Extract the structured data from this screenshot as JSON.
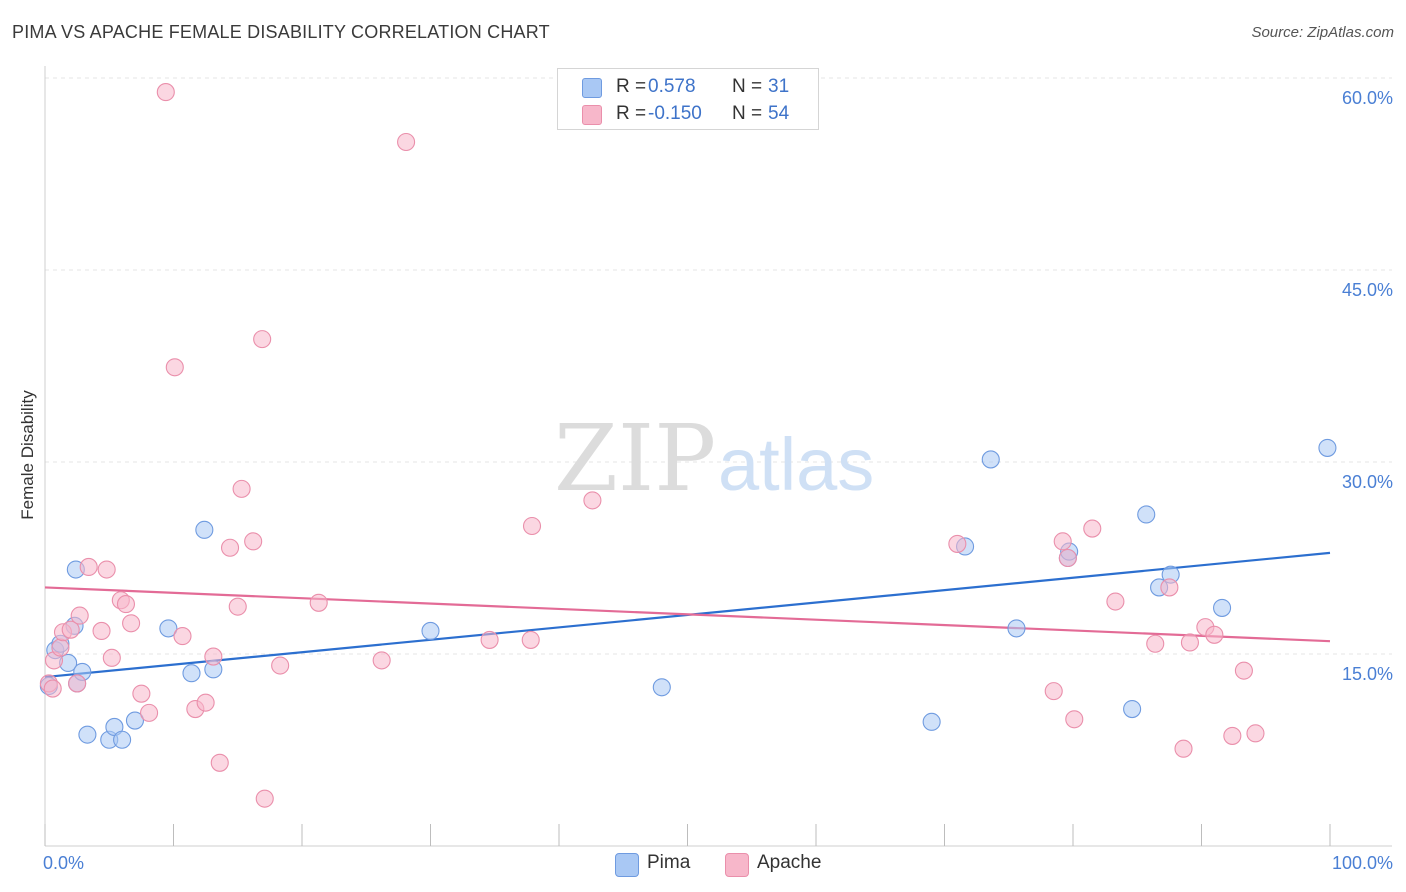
{
  "header": {
    "title": "PIMA VS APACHE FEMALE DISABILITY CORRELATION CHART",
    "source": "Source: ZipAtlas.com"
  },
  "watermark": {
    "zip": "ZIP",
    "atlas": "atlas"
  },
  "legend": {
    "rows": [
      {
        "r_label": "R =",
        "r_value": "0.578",
        "n_label": "N =",
        "n_value": "31",
        "color": "#a9c8f4"
      },
      {
        "r_label": "R =",
        "r_value": "-0.150",
        "n_label": "N =",
        "n_value": "54",
        "color": "#f7b7ca"
      }
    ]
  },
  "bottom_legend": {
    "items": [
      {
        "label": "Pima",
        "color": "#a9c8f4"
      },
      {
        "label": "Apache",
        "color": "#f7b7ca"
      }
    ]
  },
  "chart_data": {
    "type": "scatter",
    "title": "PIMA VS APACHE FEMALE DISABILITY CORRELATION CHART",
    "xlabel": "",
    "ylabel": "Female Disability",
    "xlim": [
      0,
      100
    ],
    "ylim": [
      0,
      60
    ],
    "x_tick_labels": [
      "0.0%",
      "100.0%"
    ],
    "y_ticks": [
      15,
      30,
      45,
      60
    ],
    "y_tick_labels": [
      "15.0%",
      "30.0%",
      "45.0%",
      "60.0%"
    ],
    "grid": true,
    "legend_position": "top-center",
    "series": [
      {
        "name": "Pima",
        "color": "#a9c8f4",
        "stroke": "#6f9be0",
        "trend_color": "#2c6fcf",
        "trend": {
          "x": [
            0,
            100
          ],
          "y": [
            13.2,
            22.9
          ]
        },
        "points": [
          [
            0.3,
            12.5
          ],
          [
            0.8,
            15.3
          ],
          [
            1.2,
            15.8
          ],
          [
            1.8,
            14.3
          ],
          [
            2.3,
            17.2
          ],
          [
            2.4,
            21.6
          ],
          [
            2.5,
            12.7
          ],
          [
            2.9,
            13.6
          ],
          [
            3.3,
            8.7
          ],
          [
            5.0,
            8.3
          ],
          [
            5.4,
            9.3
          ],
          [
            6.0,
            8.3
          ],
          [
            7.0,
            9.8
          ],
          [
            9.6,
            17.0
          ],
          [
            11.4,
            13.5
          ],
          [
            12.4,
            24.7
          ],
          [
            13.1,
            13.8
          ],
          [
            30.0,
            16.8
          ],
          [
            48.0,
            12.4
          ],
          [
            69.0,
            9.7
          ],
          [
            71.6,
            23.4
          ],
          [
            73.6,
            30.2
          ],
          [
            75.6,
            17.0
          ],
          [
            79.6,
            22.5
          ],
          [
            79.7,
            23.0
          ],
          [
            84.6,
            10.7
          ],
          [
            85.7,
            25.9
          ],
          [
            86.7,
            20.2
          ],
          [
            87.6,
            21.2
          ],
          [
            91.6,
            18.6
          ],
          [
            99.8,
            31.1
          ]
        ]
      },
      {
        "name": "Apache",
        "color": "#f7b7ca",
        "stroke": "#ea8fab",
        "trend_color": "#e36b96",
        "trend": {
          "x": [
            0,
            100
          ],
          "y": [
            20.2,
            16.0
          ]
        },
        "points": [
          [
            0.3,
            12.7
          ],
          [
            0.6,
            12.3
          ],
          [
            0.7,
            14.5
          ],
          [
            1.2,
            15.5
          ],
          [
            1.4,
            16.7
          ],
          [
            2.0,
            16.9
          ],
          [
            2.5,
            12.7
          ],
          [
            2.7,
            18.0
          ],
          [
            3.4,
            21.8
          ],
          [
            4.4,
            16.8
          ],
          [
            4.8,
            21.6
          ],
          [
            5.2,
            14.7
          ],
          [
            5.9,
            19.2
          ],
          [
            6.3,
            18.9
          ],
          [
            6.7,
            17.4
          ],
          [
            7.5,
            11.9
          ],
          [
            8.1,
            10.4
          ],
          [
            9.4,
            58.9
          ],
          [
            10.1,
            37.4
          ],
          [
            10.7,
            16.4
          ],
          [
            11.7,
            10.7
          ],
          [
            12.5,
            11.2
          ],
          [
            13.1,
            14.8
          ],
          [
            13.6,
            6.5
          ],
          [
            14.4,
            23.3
          ],
          [
            15.0,
            18.7
          ],
          [
            15.3,
            27.9
          ],
          [
            16.2,
            23.8
          ],
          [
            16.9,
            39.6
          ],
          [
            17.1,
            3.7
          ],
          [
            18.3,
            14.1
          ],
          [
            21.3,
            19.0
          ],
          [
            26.2,
            14.5
          ],
          [
            28.1,
            55.0
          ],
          [
            34.6,
            16.1
          ],
          [
            37.8,
            16.1
          ],
          [
            37.9,
            25.0
          ],
          [
            42.6,
            27.0
          ],
          [
            71.0,
            23.6
          ],
          [
            79.2,
            23.8
          ],
          [
            79.6,
            22.5
          ],
          [
            80.1,
            9.9
          ],
          [
            81.5,
            24.8
          ],
          [
            78.5,
            12.1
          ],
          [
            83.3,
            19.1
          ],
          [
            86.4,
            15.8
          ],
          [
            87.5,
            20.2
          ],
          [
            88.6,
            7.6
          ],
          [
            89.1,
            15.9
          ],
          [
            90.3,
            17.1
          ],
          [
            91.0,
            16.5
          ],
          [
            92.4,
            8.6
          ],
          [
            93.3,
            13.7
          ],
          [
            94.2,
            8.8
          ]
        ]
      }
    ]
  }
}
